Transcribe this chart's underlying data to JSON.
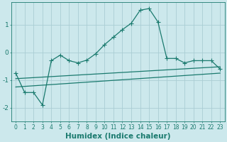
{
  "xlabel": "Humidex (Indice chaleur)",
  "bg_color": "#cce8ec",
  "grid_color": "#aacdd4",
  "line_color": "#1a7a6e",
  "xlim": [
    -0.5,
    23.5
  ],
  "ylim": [
    -2.5,
    1.8
  ],
  "yticks": [
    -2,
    -1,
    0,
    1
  ],
  "xtick_labels": [
    "0",
    "1",
    "2",
    "3",
    "4",
    "5",
    "6",
    "7",
    "8",
    "9",
    "10",
    "11",
    "12",
    "13",
    "14",
    "15",
    "16",
    "17",
    "18",
    "19",
    "20",
    "21",
    "22",
    "23"
  ],
  "xtick_vals": [
    0,
    1,
    2,
    3,
    4,
    5,
    6,
    7,
    8,
    9,
    10,
    11,
    12,
    13,
    14,
    15,
    16,
    17,
    18,
    19,
    20,
    21,
    22,
    23
  ],
  "main_x": [
    0,
    1,
    2,
    3,
    4,
    5,
    6,
    7,
    8,
    9,
    10,
    11,
    12,
    13,
    14,
    15,
    16,
    17,
    18,
    19,
    20,
    21,
    22,
    23
  ],
  "main_y": [
    -0.75,
    -1.45,
    -1.45,
    -1.9,
    -0.3,
    -0.1,
    -0.3,
    -0.38,
    -0.28,
    -0.05,
    0.28,
    0.55,
    0.82,
    1.05,
    1.52,
    1.58,
    1.1,
    -0.22,
    -0.22,
    -0.38,
    -0.3,
    -0.3,
    -0.3,
    -0.6
  ],
  "upper_line_x": [
    0,
    23
  ],
  "upper_line_y": [
    -0.95,
    -0.52
  ],
  "lower_line_x": [
    0,
    23
  ],
  "lower_line_y": [
    -1.25,
    -0.75
  ],
  "marker": "+",
  "marker_size": 4,
  "line_width": 0.9,
  "font_size_label": 6.5,
  "font_size_tick": 5.5
}
